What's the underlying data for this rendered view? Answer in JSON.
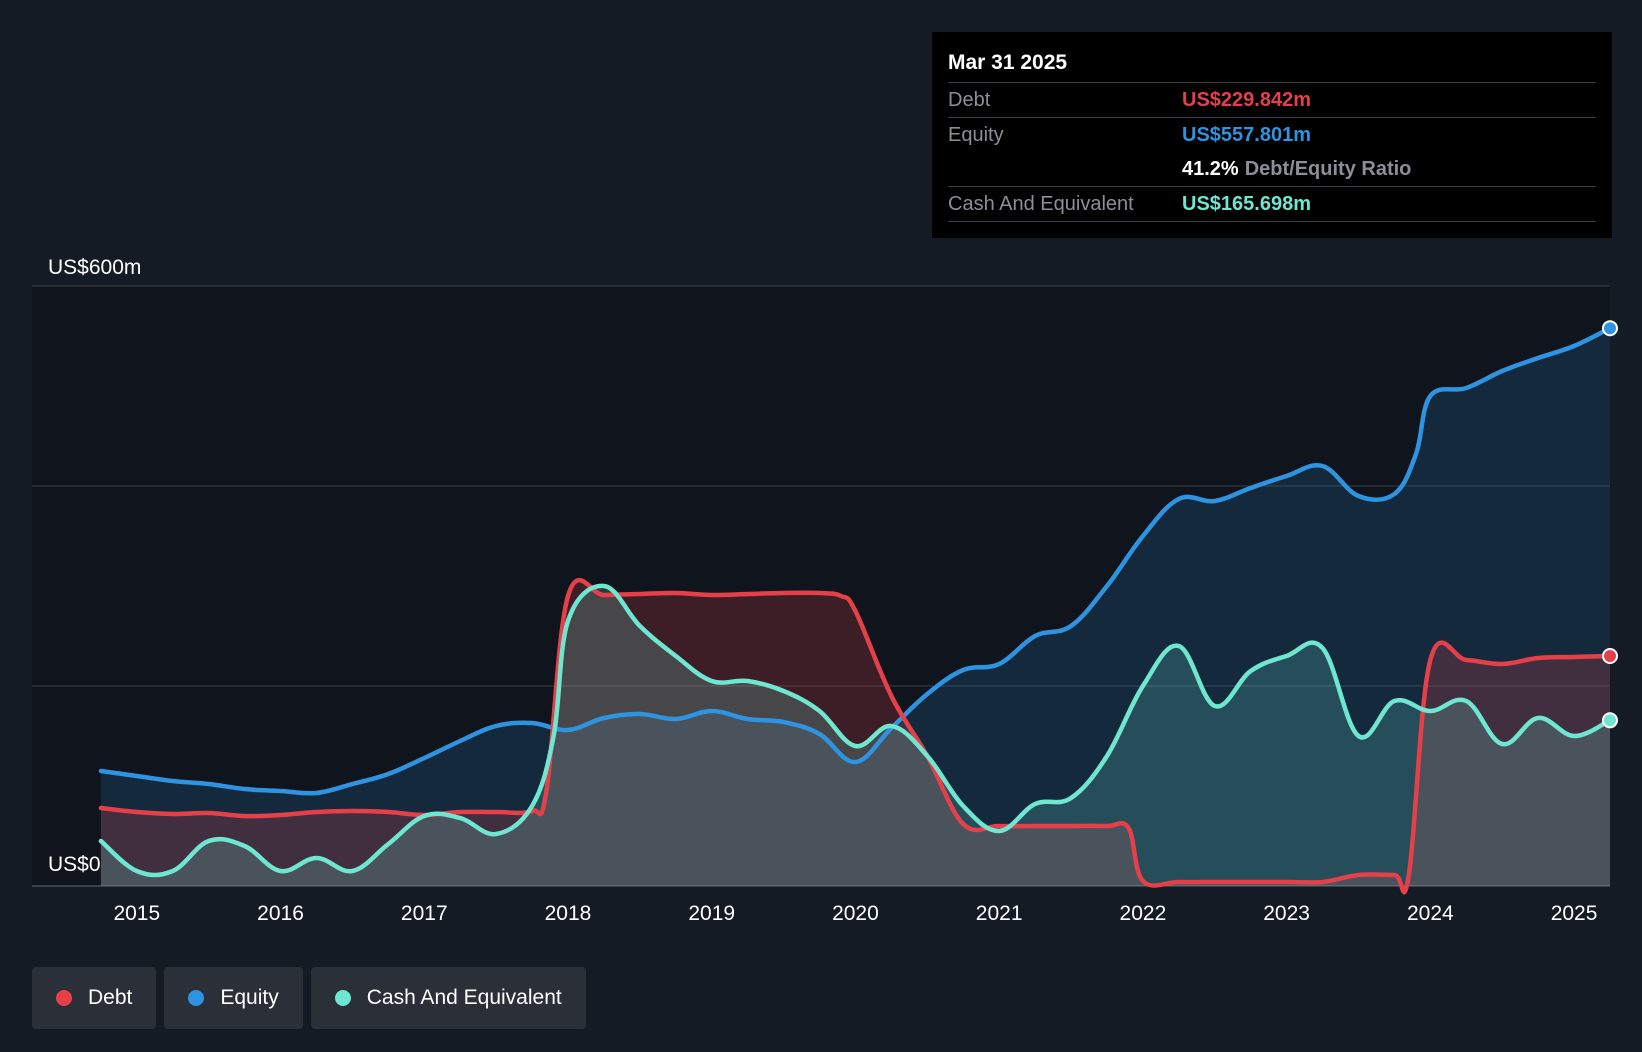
{
  "tooltip": {
    "date": "Mar 31 2025",
    "rows": [
      {
        "label": "Debt",
        "value": "US$229.842m"
      },
      {
        "label": "Equity",
        "value": "US$557.801m"
      },
      {
        "ratio_value": "41.2%",
        "ratio_label": "Debt/Equity Ratio"
      },
      {
        "label": "Cash And Equivalent",
        "value": "US$165.698m"
      }
    ]
  },
  "legend": {
    "items": [
      {
        "label": "Debt"
      },
      {
        "label": "Equity"
      },
      {
        "label": "Cash And Equivalent"
      }
    ]
  },
  "colors": {
    "debt": "#e5404a",
    "equity": "#2e93e0",
    "cash": "#6ee6d0",
    "background": "#151b24",
    "grid": "#3a3f47"
  },
  "chart_data": {
    "type": "area",
    "title": "",
    "xlabel": "",
    "ylabel": "",
    "ylim": [
      0,
      600
    ],
    "y_tick_labels": [
      {
        "value": 0,
        "label": "US$0"
      },
      {
        "value": 600,
        "label": "US$600m"
      }
    ],
    "y_gridlines": [
      0,
      200,
      400,
      600
    ],
    "x_tick_labels": [
      {
        "value": 2015,
        "label": "2015"
      },
      {
        "value": 2016,
        "label": "2016"
      },
      {
        "value": 2017,
        "label": "2017"
      },
      {
        "value": 2018,
        "label": "2018"
      },
      {
        "value": 2019,
        "label": "2019"
      },
      {
        "value": 2020,
        "label": "2020"
      },
      {
        "value": 2021,
        "label": "2021"
      },
      {
        "value": 2022,
        "label": "2022"
      },
      {
        "value": 2023,
        "label": "2023"
      },
      {
        "value": 2024,
        "label": "2024"
      },
      {
        "value": 2025,
        "label": "2025"
      }
    ],
    "series": [
      {
        "name": "Debt",
        "x": [
          2014.75,
          2015.0,
          2015.25,
          2015.5,
          2015.75,
          2016.0,
          2016.25,
          2016.5,
          2016.75,
          2017.0,
          2017.25,
          2017.5,
          2017.75,
          2017.85,
          2018.0,
          2018.25,
          2018.5,
          2018.75,
          2019.0,
          2019.25,
          2019.5,
          2019.75,
          2019.9,
          2020.0,
          2020.25,
          2020.5,
          2020.75,
          2021.0,
          2021.25,
          2021.5,
          2021.75,
          2021.9,
          2022.0,
          2022.25,
          2022.5,
          2022.75,
          2023.0,
          2023.25,
          2023.5,
          2023.75,
          2023.85,
          2024.0,
          2024.25,
          2024.5,
          2024.75,
          2025.0,
          2025.25
        ],
        "values": [
          78,
          74,
          72,
          73,
          70,
          71,
          74,
          75,
          74,
          71,
          74,
          74,
          75,
          95,
          290,
          291,
          292,
          293,
          291,
          292,
          293,
          293,
          290,
          275,
          190,
          130,
          62,
          60,
          60,
          60,
          60,
          58,
          5,
          4,
          4,
          4,
          4,
          4,
          11,
          11,
          11,
          226,
          226,
          222,
          228,
          229,
          230
        ]
      },
      {
        "name": "Equity",
        "x": [
          2014.75,
          2015.0,
          2015.25,
          2015.5,
          2015.75,
          2016.0,
          2016.25,
          2016.5,
          2016.75,
          2017.0,
          2017.25,
          2017.5,
          2017.75,
          2018.0,
          2018.25,
          2018.5,
          2018.75,
          2019.0,
          2019.25,
          2019.5,
          2019.75,
          2020.0,
          2020.25,
          2020.5,
          2020.75,
          2021.0,
          2021.25,
          2021.5,
          2021.75,
          2022.0,
          2022.25,
          2022.5,
          2022.75,
          2023.0,
          2023.25,
          2023.5,
          2023.75,
          2023.9,
          2024.0,
          2024.25,
          2024.5,
          2024.75,
          2025.0,
          2025.25
        ],
        "values": [
          115,
          110,
          105,
          102,
          97,
          95,
          93,
          102,
          112,
          128,
          145,
          160,
          163,
          156,
          168,
          172,
          167,
          175,
          167,
          164,
          152,
          124,
          158,
          192,
          216,
          222,
          250,
          260,
          300,
          350,
          387,
          385,
          398,
          410,
          420,
          390,
          392,
          432,
          490,
          498,
          515,
          528,
          540,
          557.8
        ]
      },
      {
        "name": "Cash And Equivalent",
        "x": [
          2014.75,
          2015.0,
          2015.25,
          2015.5,
          2015.75,
          2016.0,
          2016.25,
          2016.5,
          2016.75,
          2017.0,
          2017.25,
          2017.5,
          2017.75,
          2017.9,
          2018.0,
          2018.25,
          2018.5,
          2018.75,
          2019.0,
          2019.25,
          2019.5,
          2019.75,
          2020.0,
          2020.25,
          2020.5,
          2020.75,
          2021.0,
          2021.25,
          2021.5,
          2021.75,
          2022.0,
          2022.25,
          2022.5,
          2022.75,
          2023.0,
          2023.25,
          2023.5,
          2023.75,
          2024.0,
          2024.25,
          2024.5,
          2024.75,
          2025.0,
          2025.25
        ],
        "values": [
          45,
          15,
          15,
          45,
          40,
          15,
          28,
          15,
          42,
          70,
          68,
          52,
          80,
          150,
          265,
          300,
          260,
          230,
          205,
          205,
          195,
          175,
          140,
          160,
          130,
          80,
          55,
          82,
          88,
          130,
          200,
          240,
          180,
          215,
          230,
          238,
          150,
          185,
          175,
          185,
          142,
          168,
          150,
          165.7
        ]
      }
    ]
  }
}
